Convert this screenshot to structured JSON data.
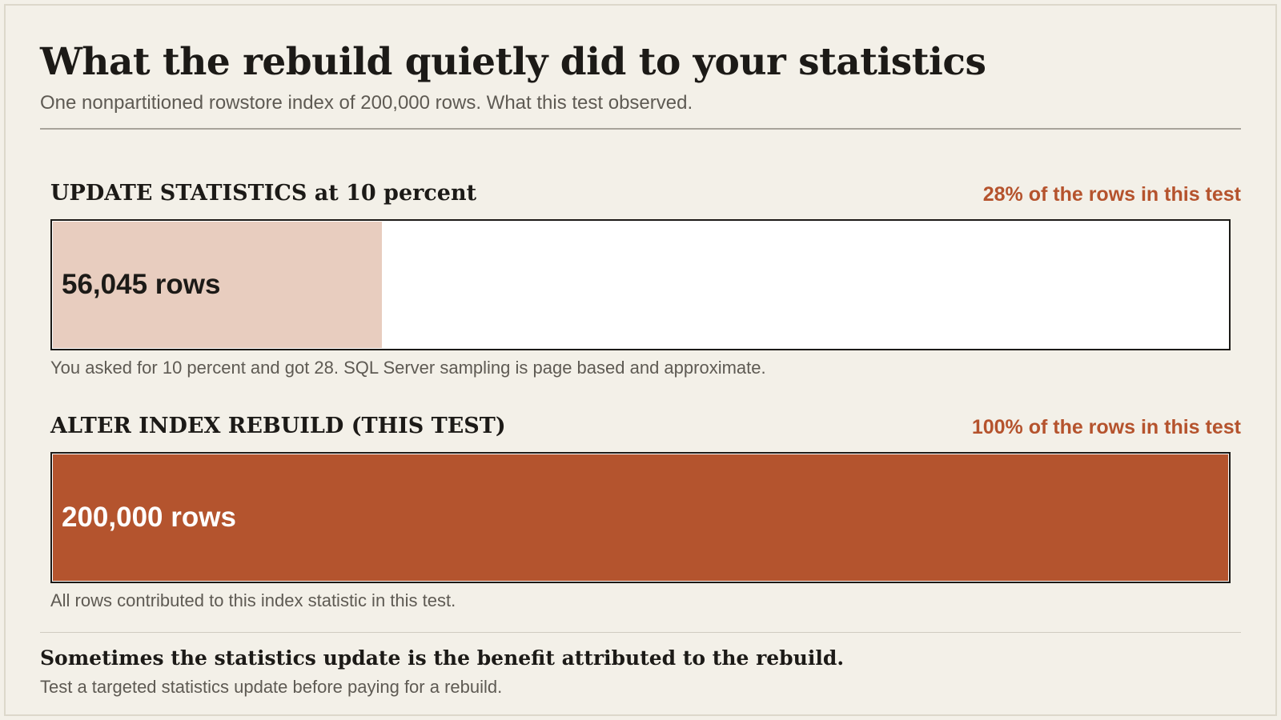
{
  "title": "What the rebuild quietly did to your statistics",
  "subtitle": "One nonpartitioned rowstore index of 200,000 rows. What this test observed.",
  "colors": {
    "accent": "#b5532d",
    "bar_light": "#e8cdbf",
    "bar_dark": "#b4542e",
    "background": "#f3f0e8"
  },
  "chart_data": {
    "type": "bar",
    "total_rows": 200000,
    "categories": [
      "UPDATE STATISTICS at 10 percent",
      "ALTER INDEX REBUILD (THIS TEST)"
    ],
    "values": [
      56045,
      200000
    ],
    "bars": [
      {
        "label": "UPDATE STATISTICS at 10 percent",
        "rows": 56045,
        "fraction": 0.28,
        "value_label": "56,045 rows",
        "pct_label": "28% of the rows in this test",
        "note": "You asked for 10 percent and got 28. SQL Server sampling is page based and approximate."
      },
      {
        "label": "ALTER INDEX REBUILD (THIS TEST)",
        "rows": 200000,
        "fraction": 1.0,
        "value_label": "200,000 rows",
        "pct_label": "100% of the rows in this test",
        "note": "All rows contributed to this index statistic in this test."
      }
    ]
  },
  "takeaway": {
    "headline": "Sometimes the statistics update is the benefit attributed to the rebuild.",
    "body": "Test a targeted statistics update before paying for a rebuild."
  }
}
